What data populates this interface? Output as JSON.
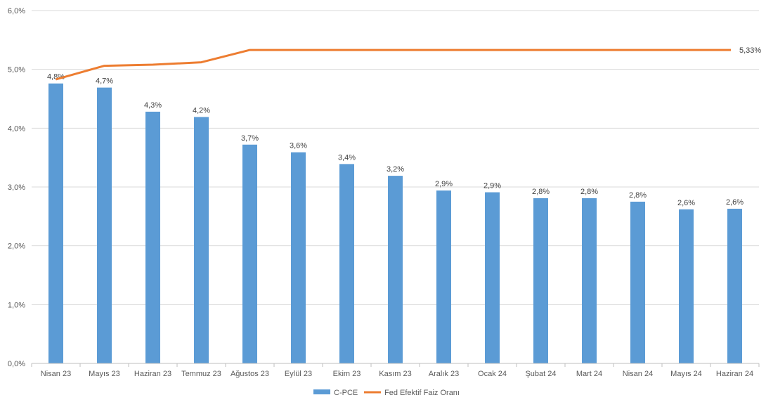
{
  "chart_data": {
    "type": "bar",
    "categories": [
      "Nisan 23",
      "Mayıs 23",
      "Haziran 23",
      "Temmuz 23",
      "Ağustos 23",
      "Eylül 23",
      "Ekim 23",
      "Kasım 23",
      "Aralık 23",
      "Ocak 24",
      "Şubat 24",
      "Mart 24",
      "Nisan 24",
      "Mayıs 24",
      "Haziran 24"
    ],
    "series": [
      {
        "name": "C-PCE",
        "type": "bar",
        "color": "#5B9BD5",
        "values": [
          4.76,
          4.69,
          4.28,
          4.19,
          3.72,
          3.59,
          3.39,
          3.19,
          2.94,
          2.91,
          2.81,
          2.81,
          2.75,
          2.62,
          2.63
        ],
        "labels": [
          "4,8%",
          "4,7%",
          "4,3%",
          "4,2%",
          "3,7%",
          "3,6%",
          "3,4%",
          "3,2%",
          "2,9%",
          "2,9%",
          "2,8%",
          "2,8%",
          "2,8%",
          "2,6%",
          "2,6%"
        ]
      },
      {
        "name": "Fed Efektif Faiz Oranı",
        "type": "line",
        "color": "#ED7D31",
        "values": [
          4.83,
          5.06,
          5.08,
          5.12,
          5.33,
          5.33,
          5.33,
          5.33,
          5.33,
          5.33,
          5.33,
          5.33,
          5.33,
          5.33,
          5.33
        ],
        "end_label": "5,33%"
      }
    ],
    "ylim": [
      0,
      6
    ],
    "yticks": [
      0,
      1,
      2,
      3,
      4,
      5,
      6
    ],
    "ytick_labels": [
      "0,0%",
      "1,0%",
      "2,0%",
      "3,0%",
      "4,0%",
      "5,0%",
      "6,0%"
    ],
    "grid": true,
    "legend": "bottom-center"
  }
}
